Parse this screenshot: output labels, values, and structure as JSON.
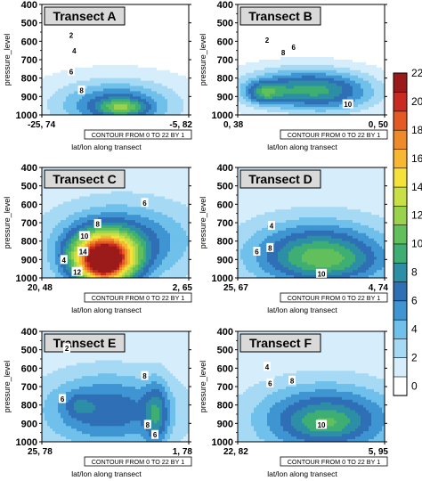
{
  "chart_data": {
    "type": "heatmap",
    "x_label": "lat/lon along transect",
    "y_label": "pressure_level",
    "contour_note": "CONTOUR FROM 0 TO 22 BY 1",
    "y_ticks": [
      "400",
      "500",
      "600",
      "700",
      "800",
      "900",
      "1000"
    ],
    "y_tick_values": [
      400,
      500,
      600,
      700,
      800,
      900,
      1000
    ],
    "ylim": [
      400,
      1000
    ],
    "colorbar": {
      "ticks": [
        "0",
        "2",
        "4",
        "6",
        "8",
        "10",
        "12",
        "14",
        "16",
        "18",
        "20",
        "22"
      ],
      "min": 0,
      "max": 22,
      "step": 2,
      "colors": [
        "#ffffff",
        "#d6eefb",
        "#a6d9f4",
        "#6fc0ea",
        "#3e95d2",
        "#2f6fb6",
        "#2d8fa6",
        "#3fae73",
        "#62c05c",
        "#9bd24d",
        "#c8df45",
        "#f4e23b",
        "#f7b733",
        "#ee8a2a",
        "#e45a24",
        "#c92b20",
        "#9b1b1b"
      ]
    },
    "panels": [
      {
        "title": "Transect A",
        "x_start": "-25, 74",
        "x_end": "-5, 82",
        "base": 1.0,
        "blobs": [
          {
            "x": 0.5,
            "p": 960,
            "sx": 0.4,
            "sp": 120,
            "v": 5.5
          },
          {
            "x": 0.55,
            "p": 960,
            "sx": 0.16,
            "sp": 45,
            "v": 5.0
          },
          {
            "x": 0.5,
            "p": 880,
            "sx": 0.35,
            "sp": 100,
            "v": 1.5
          }
        ],
        "contour_labels": [
          {
            "v": "2",
            "x": 0.2,
            "p": 565
          },
          {
            "v": "4",
            "x": 0.22,
            "p": 650
          },
          {
            "v": "6",
            "x": 0.2,
            "p": 762
          },
          {
            "v": "8",
            "x": 0.27,
            "p": 865
          }
        ]
      },
      {
        "title": "Transect B",
        "x_start": "0, 38",
        "x_end": "0, 50",
        "base": 0.6,
        "blobs": [
          {
            "x": 0.45,
            "p": 860,
            "sx": 0.42,
            "sp": 110,
            "v": 8.0
          },
          {
            "x": 0.18,
            "p": 880,
            "sx": 0.12,
            "sp": 55,
            "v": 5.0
          },
          {
            "x": 0.7,
            "p": 900,
            "sx": 0.3,
            "sp": 110,
            "v": 2.0
          }
        ],
        "contour_labels": [
          {
            "v": "2",
            "x": 0.2,
            "p": 590
          },
          {
            "v": "8",
            "x": 0.31,
            "p": 660
          },
          {
            "v": "6",
            "x": 0.38,
            "p": 630
          },
          {
            "v": "10",
            "x": 0.75,
            "p": 940
          }
        ]
      },
      {
        "title": "Transect C",
        "x_start": "20, 48",
        "x_end": "2, 65",
        "base": 1.8,
        "blobs": [
          {
            "x": 0.42,
            "p": 900,
            "sx": 0.22,
            "sp": 140,
            "v": 19.0
          },
          {
            "x": 0.42,
            "p": 930,
            "sx": 0.1,
            "sp": 70,
            "v": 3.0
          },
          {
            "x": 0.55,
            "p": 800,
            "sx": 0.45,
            "sp": 190,
            "v": 5.5
          }
        ],
        "contour_labels": [
          {
            "v": "6",
            "x": 0.7,
            "p": 590
          },
          {
            "v": "8",
            "x": 0.38,
            "p": 705
          },
          {
            "v": "10",
            "x": 0.29,
            "p": 770
          },
          {
            "v": "14",
            "x": 0.28,
            "p": 855
          },
          {
            "v": "4",
            "x": 0.15,
            "p": 900
          },
          {
            "v": "12",
            "x": 0.24,
            "p": 965
          }
        ]
      },
      {
        "title": "Transect D",
        "x_start": "25, 67",
        "x_end": "4, 74",
        "base": 1.8,
        "blobs": [
          {
            "x": 0.55,
            "p": 870,
            "sx": 0.45,
            "sp": 170,
            "v": 8.0
          },
          {
            "x": 0.65,
            "p": 920,
            "sx": 0.35,
            "sp": 90,
            "v": 2.0
          }
        ],
        "contour_labels": [
          {
            "v": "4",
            "x": 0.23,
            "p": 715
          },
          {
            "v": "6",
            "x": 0.13,
            "p": 855
          },
          {
            "v": "8",
            "x": 0.22,
            "p": 835
          },
          {
            "v": "10",
            "x": 0.57,
            "p": 975
          }
        ]
      },
      {
        "title": "Transect E",
        "x_start": "25, 78",
        "x_end": "1, 78",
        "base": 1.6,
        "blobs": [
          {
            "x": 0.45,
            "p": 830,
            "sx": 0.45,
            "sp": 200,
            "v": 6.0
          },
          {
            "x": 0.78,
            "p": 860,
            "sx": 0.08,
            "sp": 180,
            "v": 4.5
          },
          {
            "x": 0.25,
            "p": 800,
            "sx": 0.09,
            "sp": 60,
            "v": 2.0
          }
        ],
        "contour_labels": [
          {
            "v": "2",
            "x": 0.17,
            "p": 490
          },
          {
            "v": "6",
            "x": 0.14,
            "p": 765
          },
          {
            "v": "8",
            "x": 0.7,
            "p": 640
          },
          {
            "v": "8",
            "x": 0.72,
            "p": 905
          },
          {
            "v": "6",
            "x": 0.77,
            "p": 960
          }
        ]
      },
      {
        "title": "Transect F",
        "x_start": "22, 82",
        "x_end": "5, 95",
        "base": 1.8,
        "blobs": [
          {
            "x": 0.6,
            "p": 880,
            "sx": 0.45,
            "sp": 180,
            "v": 7.5
          },
          {
            "x": 0.6,
            "p": 900,
            "sx": 0.18,
            "sp": 60,
            "v": 1.5
          }
        ],
        "contour_labels": [
          {
            "v": "4",
            "x": 0.2,
            "p": 590
          },
          {
            "v": "6",
            "x": 0.22,
            "p": 680
          },
          {
            "v": "8",
            "x": 0.37,
            "p": 665
          },
          {
            "v": "10",
            "x": 0.57,
            "p": 905
          }
        ]
      }
    ]
  }
}
